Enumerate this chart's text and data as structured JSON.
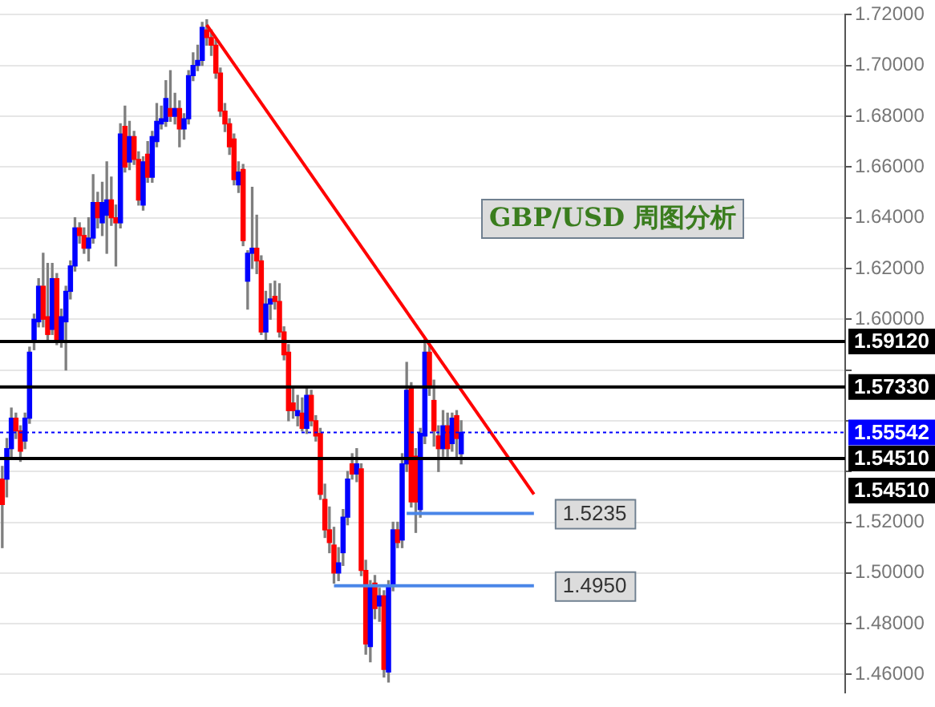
{
  "chart_data": {
    "type": "candlestick",
    "title": "GBP/USD 周图分析",
    "categories": [
      null,
      null,
      null,
      null,
      null,
      null,
      null,
      null,
      null,
      null,
      null,
      null,
      null,
      null,
      null,
      null,
      null,
      null,
      null,
      null,
      null,
      null,
      null,
      null,
      null,
      null,
      null,
      null,
      null,
      null,
      null,
      null,
      null,
      null,
      null,
      null,
      null,
      null,
      null,
      null,
      null,
      null,
      null,
      null,
      null,
      null,
      null,
      null,
      null,
      null,
      null,
      null,
      null,
      null,
      null,
      null,
      null,
      null,
      null,
      null,
      null,
      null,
      null,
      null,
      null,
      null,
      null,
      null,
      null,
      null,
      null,
      null,
      null,
      null,
      null,
      null,
      null,
      null,
      null,
      null,
      null,
      null,
      null,
      null,
      null,
      null,
      null,
      null,
      null,
      null,
      null,
      null,
      null,
      null,
      null,
      null,
      null,
      null,
      null,
      null,
      null,
      null,
      null,
      null,
      null,
      null,
      null,
      null,
      null,
      null,
      null,
      null,
      null,
      null,
      null,
      null,
      null,
      null,
      null,
      null,
      null,
      null,
      null,
      null,
      null,
      null,
      null,
      null,
      null,
      null,
      null,
      null,
      null,
      null,
      null,
      null,
      null,
      null,
      null,
      null,
      null,
      null,
      null,
      null,
      null,
      null,
      null,
      null,
      null,
      null,
      null,
      null,
      null,
      null,
      null,
      null,
      null,
      null,
      null,
      null,
      null,
      null,
      null,
      null,
      null,
      null,
      null,
      null,
      null,
      null,
      null,
      null,
      null,
      null,
      null,
      null,
      null,
      null,
      null,
      null,
      null,
      null,
      null,
      null,
      null,
      null
    ],
    "ohlc": [
      [
        1.537,
        1.542,
        1.51,
        1.527
      ],
      [
        1.537,
        1.553,
        1.53,
        1.549
      ],
      [
        1.549,
        1.565,
        1.545,
        1.561
      ],
      [
        1.561,
        1.563,
        1.553,
        1.556
      ],
      [
        1.556,
        1.558,
        1.544,
        1.548
      ],
      [
        1.552,
        1.563,
        1.549,
        1.561
      ],
      [
        1.561,
        1.589,
        1.559,
        1.587
      ],
      [
        1.592,
        1.602,
        1.588,
        1.6
      ],
      [
        1.599,
        1.616,
        1.597,
        1.613
      ],
      [
        1.613,
        1.626,
        1.597,
        1.6
      ],
      [
        1.601,
        1.622,
        1.592,
        1.594
      ],
      [
        1.596,
        1.622,
        1.594,
        1.616
      ],
      [
        1.616,
        1.618,
        1.59,
        1.591
      ],
      [
        1.591,
        1.604,
        1.589,
        1.601
      ],
      [
        1.599,
        1.613,
        1.58,
        1.611
      ],
      [
        1.611,
        1.623,
        1.608,
        1.621
      ],
      [
        1.621,
        1.64,
        1.619,
        1.636
      ],
      [
        1.636,
        1.638,
        1.63,
        1.633
      ],
      [
        1.633,
        1.636,
        1.626,
        1.628
      ],
      [
        1.628,
        1.64,
        1.623,
        1.632
      ],
      [
        1.632,
        1.657,
        1.63,
        1.646
      ],
      [
        1.646,
        1.65,
        1.636,
        1.64
      ],
      [
        1.638,
        1.654,
        1.633,
        1.646
      ],
      [
        1.641,
        1.662,
        1.626,
        1.647
      ],
      [
        1.647,
        1.656,
        1.637,
        1.64
      ],
      [
        1.64,
        1.645,
        1.621,
        1.638
      ],
      [
        1.638,
        1.677,
        1.636,
        1.673
      ],
      [
        1.676,
        1.684,
        1.658,
        1.66
      ],
      [
        1.662,
        1.678,
        1.659,
        1.672
      ],
      [
        1.672,
        1.674,
        1.661,
        1.663
      ],
      [
        1.663,
        1.666,
        1.645,
        1.647
      ],
      [
        1.645,
        1.664,
        1.643,
        1.662
      ],
      [
        1.665,
        1.67,
        1.654,
        1.656
      ],
      [
        1.656,
        1.674,
        1.654,
        1.672
      ],
      [
        1.67,
        1.685,
        1.668,
        1.678
      ],
      [
        1.677,
        1.684,
        1.675,
        1.679
      ],
      [
        1.678,
        1.694,
        1.676,
        1.687
      ],
      [
        1.683,
        1.698,
        1.678,
        1.68
      ],
      [
        1.68,
        1.689,
        1.677,
        1.683
      ],
      [
        1.683,
        1.686,
        1.668,
        1.675
      ],
      [
        1.675,
        1.681,
        1.671,
        1.679
      ],
      [
        1.679,
        1.698,
        1.677,
        1.696
      ],
      [
        1.696,
        1.705,
        1.694,
        1.7
      ],
      [
        1.7,
        1.708,
        1.698,
        1.702
      ],
      [
        1.702,
        1.717,
        1.7,
        1.715
      ],
      [
        1.714,
        1.718,
        1.708,
        1.711
      ],
      [
        1.711,
        1.714,
        1.704,
        1.708
      ],
      [
        1.708,
        1.71,
        1.695,
        1.697
      ],
      [
        1.697,
        1.699,
        1.68,
        1.682
      ],
      [
        1.682,
        1.685,
        1.674,
        1.677
      ],
      [
        1.677,
        1.679,
        1.665,
        1.668
      ],
      [
        1.671,
        1.673,
        1.653,
        1.655
      ],
      [
        1.653,
        1.662,
        1.65,
        1.658
      ],
      [
        1.659,
        1.661,
        1.629,
        1.631
      ],
      [
        1.615,
        1.627,
        1.604,
        1.626
      ],
      [
        1.626,
        1.652,
        1.62,
        1.628
      ],
      [
        1.628,
        1.641,
        1.618,
        1.623
      ],
      [
        1.623,
        1.625,
        1.594,
        1.595
      ],
      [
        1.595,
        1.611,
        1.592,
        1.606
      ],
      [
        1.606,
        1.614,
        1.6,
        1.608
      ],
      [
        1.609,
        1.615,
        1.604,
        1.607
      ],
      [
        1.607,
        1.614,
        1.593,
        1.595
      ],
      [
        1.595,
        1.597,
        1.584,
        1.586
      ],
      [
        1.587,
        1.59,
        1.56,
        1.564
      ],
      [
        1.567,
        1.573,
        1.561,
        1.564
      ],
      [
        1.562,
        1.57,
        1.558,
        1.564
      ],
      [
        1.563,
        1.569,
        1.556,
        1.557
      ],
      [
        1.557,
        1.573,
        1.555,
        1.57
      ],
      [
        1.57,
        1.572,
        1.558,
        1.56
      ],
      [
        1.56,
        1.562,
        1.552,
        1.554
      ],
      [
        1.555,
        1.557,
        1.529,
        1.531
      ],
      [
        1.529,
        1.535,
        1.514,
        1.517
      ],
      [
        1.517,
        1.526,
        1.508,
        1.512
      ],
      [
        1.511,
        1.518,
        1.496,
        1.5
      ],
      [
        1.5,
        1.51,
        1.497,
        1.504
      ],
      [
        1.508,
        1.525,
        1.503,
        1.522
      ],
      [
        1.522,
        1.54,
        1.519,
        1.537
      ],
      [
        1.543,
        1.547,
        1.537,
        1.539
      ],
      [
        1.539,
        1.549,
        1.536,
        1.543
      ],
      [
        1.541,
        1.543,
        1.499,
        1.501
      ],
      [
        1.501,
        1.505,
        1.468,
        1.472
      ],
      [
        1.471,
        1.497,
        1.465,
        1.495
      ],
      [
        1.496,
        1.499,
        1.482,
        1.486
      ],
      [
        1.487,
        1.494,
        1.481,
        1.491
      ],
      [
        1.491,
        1.493,
        1.459,
        1.462
      ],
      [
        1.461,
        1.497,
        1.457,
        1.495
      ],
      [
        1.495,
        1.52,
        1.493,
        1.517
      ],
      [
        1.517,
        1.52,
        1.51,
        1.512
      ],
      [
        1.513,
        1.547,
        1.51,
        1.543
      ],
      [
        1.543,
        1.583,
        1.54,
        1.572
      ],
      [
        1.573,
        1.575,
        1.526,
        1.528
      ],
      [
        1.546,
        1.549,
        1.516,
        1.528
      ],
      [
        1.525,
        1.557,
        1.522,
        1.555
      ],
      [
        1.554,
        1.592,
        1.551,
        1.587
      ],
      [
        1.587,
        1.59,
        1.57,
        1.573
      ],
      [
        1.568,
        1.576,
        1.55,
        1.556
      ],
      [
        1.554,
        1.558,
        1.54,
        1.549
      ],
      [
        1.549,
        1.564,
        1.546,
        1.558
      ],
      [
        1.558,
        1.563,
        1.546,
        1.549
      ],
      [
        1.551,
        1.563,
        1.548,
        1.561
      ],
      [
        1.562,
        1.564,
        1.545,
        1.553
      ],
      [
        1.547,
        1.56,
        1.543,
        1.55542
      ],
      null,
      null,
      null,
      null,
      null,
      null,
      null,
      null,
      null,
      null,
      null,
      null,
      null,
      null,
      null,
      null,
      null,
      null,
      null,
      null,
      null,
      null,
      null,
      null,
      null,
      null,
      null,
      null,
      null,
      null,
      null,
      null,
      null,
      null,
      null,
      null,
      null,
      null,
      null,
      null,
      null,
      null,
      null,
      null,
      null,
      null,
      null,
      null,
      null,
      null,
      null,
      null,
      null,
      null,
      null,
      null,
      null,
      null,
      null,
      null,
      null,
      null,
      null,
      null,
      null,
      null,
      null,
      null,
      null,
      null,
      null,
      null,
      null,
      null,
      null,
      null,
      null,
      null,
      null,
      null,
      null,
      null,
      null,
      null
    ],
    "series": [
      {
        "type": "line",
        "color": "#ff0000",
        "values": [
          null,
          null,
          null,
          null,
          null,
          null,
          null,
          null,
          null,
          null,
          null,
          null,
          null,
          null,
          null,
          null,
          null,
          null,
          null,
          null,
          null,
          null,
          null,
          null,
          null,
          null,
          null,
          null,
          null,
          null,
          null,
          null,
          null,
          null,
          null,
          null,
          null,
          null,
          null,
          null,
          null,
          null,
          null,
          null,
          null,
          1.716,
          null,
          null,
          null,
          null,
          null,
          null,
          null,
          null,
          null,
          null,
          null,
          null,
          null,
          null,
          null,
          null,
          null,
          null,
          null,
          null,
          null,
          null,
          null,
          null,
          null,
          null,
          null,
          null,
          null,
          null,
          null,
          null,
          null,
          null,
          null,
          null,
          null,
          null,
          null,
          null,
          null,
          null,
          null,
          null,
          null,
          null,
          null,
          null,
          null,
          null,
          null,
          null,
          null,
          null,
          null,
          null,
          null,
          null,
          null,
          null,
          null,
          null,
          null,
          null,
          null,
          null,
          null,
          null,
          null,
          null,
          null,
          1.531,
          null,
          null,
          null,
          null,
          null,
          null,
          null,
          null,
          null,
          null,
          null,
          null,
          null,
          null,
          null,
          null,
          null,
          null,
          null,
          null,
          null,
          null,
          null,
          null,
          null,
          null,
          null,
          null,
          null,
          null,
          null,
          null,
          null,
          null,
          null,
          null,
          null,
          null,
          null,
          null,
          null,
          null,
          null,
          null,
          null,
          null,
          null,
          null,
          null,
          null,
          null,
          null,
          null,
          null,
          null,
          null,
          null,
          null,
          null,
          null,
          null,
          null,
          null,
          null,
          null,
          null,
          null,
          null
        ]
      },
      {
        "type": "line",
        "name": "1.5235",
        "color": "#4a86e8",
        "values": [
          null,
          null,
          null,
          null,
          null,
          null,
          null,
          null,
          null,
          null,
          null,
          null,
          null,
          null,
          null,
          null,
          null,
          null,
          null,
          null,
          null,
          null,
          null,
          null,
          null,
          null,
          null,
          null,
          null,
          null,
          null,
          null,
          null,
          null,
          null,
          null,
          null,
          null,
          null,
          null,
          null,
          null,
          null,
          null,
          null,
          null,
          null,
          null,
          null,
          null,
          null,
          null,
          null,
          null,
          null,
          null,
          null,
          null,
          null,
          null,
          null,
          null,
          null,
          null,
          null,
          null,
          null,
          null,
          null,
          null,
          null,
          null,
          null,
          null,
          null,
          null,
          null,
          null,
          null,
          null,
          null,
          null,
          null,
          null,
          null,
          null,
          null,
          null,
          null,
          1.5235,
          null,
          null,
          null,
          null,
          null,
          null,
          null,
          null,
          null,
          null,
          null,
          null,
          null,
          null,
          null,
          null,
          null,
          null,
          null,
          null,
          null,
          null,
          null,
          null,
          null,
          null,
          null,
          1.5235,
          null,
          null,
          null,
          null,
          null,
          null,
          null,
          null,
          null,
          null,
          null,
          null,
          null,
          null,
          null,
          null,
          null,
          null,
          null,
          null,
          null,
          null,
          null,
          null,
          null,
          null,
          null,
          null,
          null,
          null,
          null,
          null,
          null,
          null,
          null,
          null,
          null,
          null,
          null,
          null,
          null,
          null,
          null,
          null,
          null,
          null,
          null,
          null,
          null,
          null,
          null,
          null,
          null,
          null,
          null,
          null,
          null,
          null,
          null,
          null,
          null,
          null,
          null,
          null,
          null,
          null,
          null,
          null
        ]
      },
      {
        "type": "line",
        "name": "1.4950",
        "color": "#4a86e8",
        "values": [
          null,
          null,
          null,
          null,
          null,
          null,
          null,
          null,
          null,
          null,
          null,
          null,
          null,
          null,
          null,
          null,
          null,
          null,
          null,
          null,
          null,
          null,
          null,
          null,
          null,
          null,
          null,
          null,
          null,
          null,
          null,
          null,
          null,
          null,
          null,
          null,
          null,
          null,
          null,
          null,
          null,
          null,
          null,
          null,
          null,
          null,
          null,
          null,
          null,
          null,
          null,
          null,
          null,
          null,
          null,
          null,
          null,
          null,
          null,
          null,
          null,
          null,
          null,
          null,
          null,
          null,
          null,
          null,
          null,
          null,
          null,
          null,
          null,
          1.495,
          null,
          null,
          null,
          null,
          null,
          null,
          null,
          null,
          null,
          null,
          null,
          null,
          null,
          null,
          null,
          null,
          null,
          null,
          null,
          null,
          null,
          null,
          null,
          null,
          null,
          null,
          null,
          null,
          null,
          null,
          null,
          null,
          null,
          null,
          null,
          null,
          null,
          null,
          null,
          null,
          null,
          null,
          null,
          1.495,
          null,
          null,
          null,
          null,
          null,
          null,
          null,
          null,
          null,
          null,
          null,
          null,
          null,
          null,
          null,
          null,
          null,
          null,
          null,
          null,
          null,
          null,
          null,
          null,
          null,
          null,
          null,
          null,
          null,
          null,
          null,
          null,
          null,
          null,
          null,
          null,
          null,
          null,
          null,
          null,
          null,
          null,
          null,
          null,
          null,
          null,
          null,
          null,
          null,
          null,
          null,
          null,
          null,
          null,
          null,
          null,
          null,
          null,
          null,
          null,
          null,
          null,
          null,
          null,
          null,
          null,
          null,
          null
        ]
      }
    ],
    "ylim": [
      1.453,
      1.72
    ],
    "yticks": [
      {
        "value": 1.46,
        "label": "1.46000"
      },
      {
        "value": 1.48,
        "label": "1.48000"
      },
      {
        "value": 1.5,
        "label": "1.50000"
      },
      {
        "value": 1.52,
        "label": "1.52000"
      },
      {
        "value": 1.54,
        "label": null
      },
      {
        "value": 1.56,
        "label": null
      },
      {
        "value": 1.58,
        "label": null
      },
      {
        "value": 1.6,
        "label": "1.60000"
      },
      {
        "value": 1.62,
        "label": "1.62000"
      },
      {
        "value": 1.64,
        "label": "1.64000"
      },
      {
        "value": 1.66,
        "label": "1.66000"
      },
      {
        "value": 1.68,
        "label": "1.68000"
      },
      {
        "value": 1.7,
        "label": "1.70000"
      },
      {
        "value": 1.72,
        "label": "1.72000"
      }
    ],
    "ref_lines": [
      {
        "axis": "y",
        "value": 1.5912,
        "label": "1.59120",
        "color": "#000000"
      },
      {
        "axis": "y",
        "value": 1.5733,
        "label": "1.57330",
        "color": "#000000"
      },
      {
        "axis": "y",
        "value": 1.55542,
        "label": "1.55542",
        "color": "#0000ff",
        "line_style": "dotted"
      },
      {
        "axis": "y",
        "value": 1.5451,
        "label": "1.54510",
        "color": "#000000"
      }
    ],
    "annotations": [
      "1.54510"
    ],
    "grid": "y",
    "tick_labels": "y",
    "legend": false
  }
}
